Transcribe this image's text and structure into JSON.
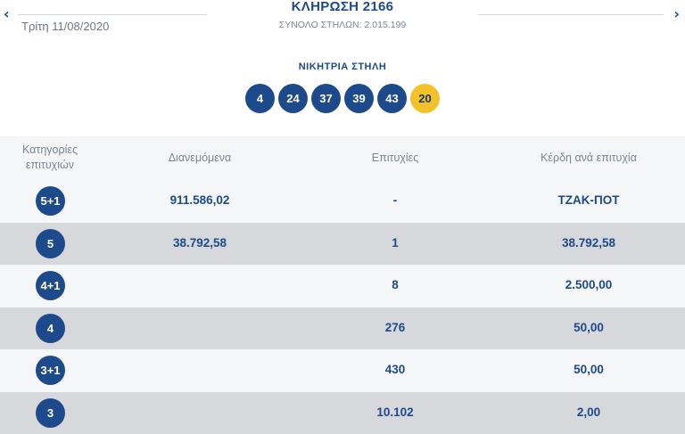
{
  "header": {
    "date": "Τρίτη 11/08/2020",
    "draw_title": "ΚΛΗΡΩΣΗ 2166",
    "columns_label": "ΣΥΝΟΛΟ ΣΤΗΛΩΝ:",
    "columns_value": "2.015.199",
    "prev_icon": "chevron-left-icon",
    "next_icon": "chevron-right-icon"
  },
  "winning": {
    "title": "ΝΙΚΗΤΡΙΑ ΣΤΗΛΗ",
    "numbers": [
      "4",
      "24",
      "37",
      "39",
      "43"
    ],
    "joker": "20"
  },
  "table": {
    "headers": {
      "category": "Κατηγορίες επιτυχιών",
      "distributed": "Διανεμόμενα",
      "winners": "Επιτυχίες",
      "prize": "Κέρδη ανά επιτυχία"
    },
    "rows": [
      {
        "category": "5+1",
        "distributed": "911.586,02",
        "winners": "-",
        "prize": "ΤΖΑΚ-ΠΟΤ"
      },
      {
        "category": "5",
        "distributed": "38.792,58",
        "winners": "1",
        "prize": "38.792,58"
      },
      {
        "category": "4+1",
        "distributed": "",
        "winners": "8",
        "prize": "2.500,00"
      },
      {
        "category": "4",
        "distributed": "",
        "winners": "276",
        "prize": "50,00"
      },
      {
        "category": "3+1",
        "distributed": "",
        "winners": "430",
        "prize": "50,00"
      },
      {
        "category": "3",
        "distributed": "",
        "winners": "10.102",
        "prize": "2,00"
      }
    ]
  },
  "colors": {
    "primary": "#1c4a8a",
    "joker": "#f3c22b",
    "row_light": "#f5f6f8",
    "row_dark": "#d6d8dc"
  }
}
